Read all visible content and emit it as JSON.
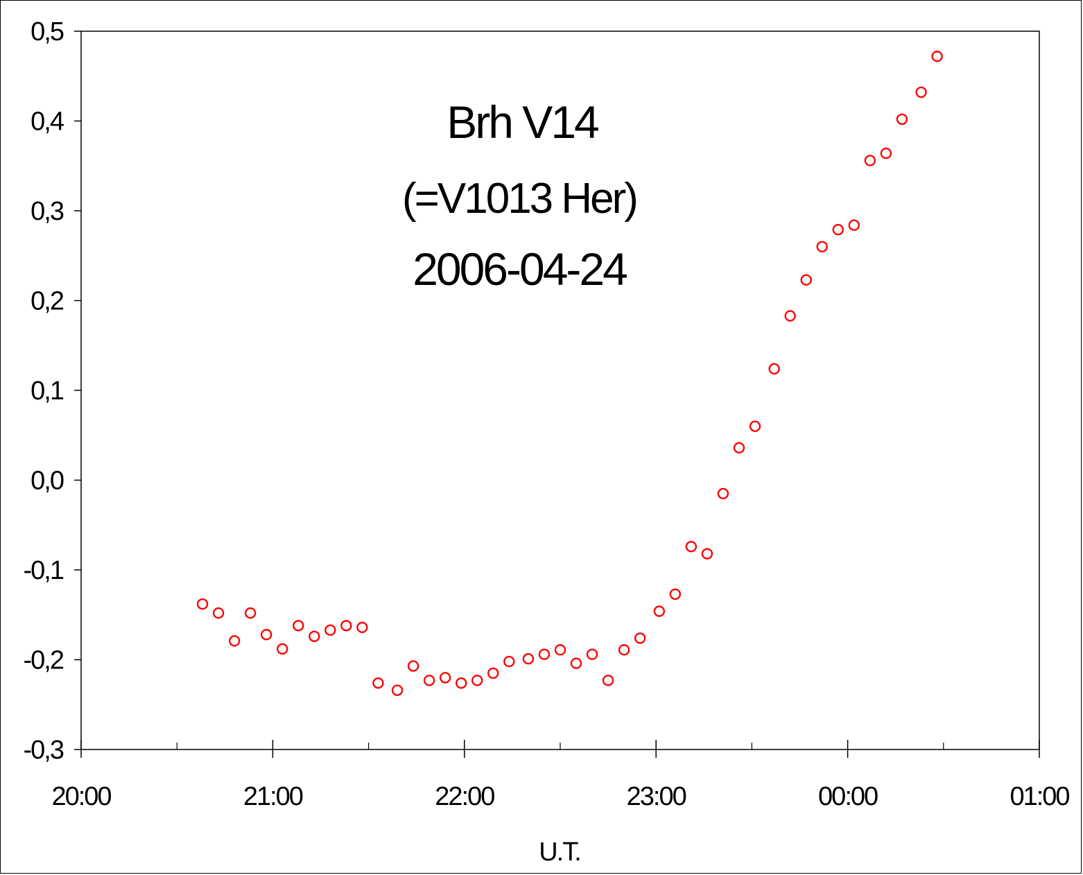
{
  "chart_data": {
    "type": "scatter",
    "title": "Brh V14",
    "subtitle": "(=V1013 Her)",
    "date": "2006-04-24",
    "xlabel": "U.T.",
    "ylabel": "",
    "x_ticks": [
      "20:00",
      "21:00",
      "22:00",
      "23:00",
      "00:00",
      "01:00"
    ],
    "y_ticks": [
      "0,5",
      "0,4",
      "0,3",
      "0,2",
      "0,1",
      "0,0",
      "-0,1",
      "-0,2",
      "-0,3"
    ],
    "xlim": [
      "20:00",
      "01:00"
    ],
    "ylim": [
      -0.3,
      0.5
    ],
    "grid": false,
    "legend": "none",
    "marker": "open-circle",
    "color": "#ff0000",
    "series": [
      {
        "points": [
          [
            "20:38",
            -0.138
          ],
          [
            "20:43",
            -0.148
          ],
          [
            "20:48",
            -0.179
          ],
          [
            "20:53",
            -0.148
          ],
          [
            "20:58",
            -0.172
          ],
          [
            "21:03",
            -0.188
          ],
          [
            "21:08",
            -0.162
          ],
          [
            "21:13",
            -0.174
          ],
          [
            "21:18",
            -0.167
          ],
          [
            "21:23",
            -0.162
          ],
          [
            "21:28",
            -0.164
          ],
          [
            "21:33",
            -0.226
          ],
          [
            "21:39",
            -0.234
          ],
          [
            "21:44",
            -0.207
          ],
          [
            "21:49",
            -0.223
          ],
          [
            "21:54",
            -0.22
          ],
          [
            "21:59",
            -0.226
          ],
          [
            "22:04",
            -0.223
          ],
          [
            "22:09",
            -0.215
          ],
          [
            "22:14",
            -0.202
          ],
          [
            "22:20",
            -0.199
          ],
          [
            "22:25",
            -0.194
          ],
          [
            "22:30",
            -0.189
          ],
          [
            "22:35",
            -0.204
          ],
          [
            "22:40",
            -0.194
          ],
          [
            "22:45",
            -0.223
          ],
          [
            "22:50",
            -0.189
          ],
          [
            "22:55",
            -0.176
          ],
          [
            "23:01",
            -0.146
          ],
          [
            "23:06",
            -0.127
          ],
          [
            "23:11",
            -0.074
          ],
          [
            "23:16",
            -0.082
          ],
          [
            "23:21",
            -0.015
          ],
          [
            "23:26",
            0.036
          ],
          [
            "23:31",
            0.06
          ],
          [
            "23:37",
            0.124
          ],
          [
            "23:42",
            0.183
          ],
          [
            "23:47",
            0.223
          ],
          [
            "23:52",
            0.26
          ],
          [
            "23:57",
            0.279
          ],
          [
            "00:02",
            0.284
          ],
          [
            "00:07",
            0.356
          ],
          [
            "00:12",
            0.364
          ],
          [
            "00:17",
            0.402
          ],
          [
            "00:23",
            0.432
          ],
          [
            "00:28",
            0.472
          ]
        ]
      }
    ]
  }
}
